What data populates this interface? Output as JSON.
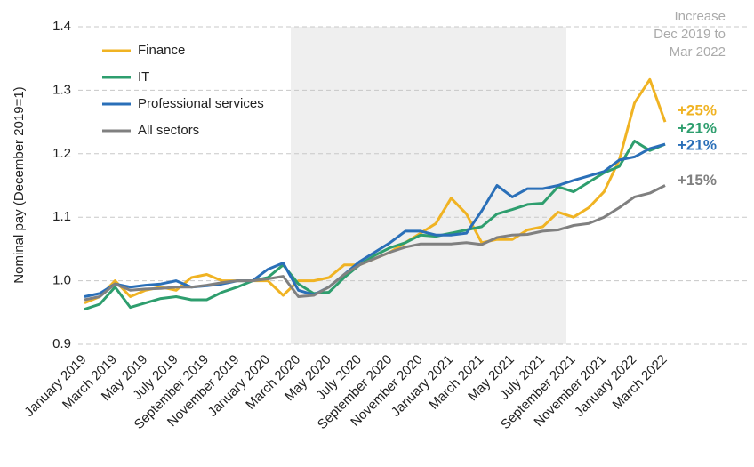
{
  "chart_data": {
    "type": "line",
    "ylabel": "Nominal pay (December 2019=1)",
    "annotation": [
      "Increase",
      "Dec 2019 to",
      "Mar 2022"
    ],
    "categories": [
      "January 2019",
      null,
      "March 2019",
      null,
      "May 2019",
      null,
      "July 2019",
      null,
      "September 2019",
      null,
      "November 2019",
      null,
      "January 2020",
      null,
      "March 2020",
      null,
      "May 2020",
      null,
      "July 2020",
      null,
      "September 2020",
      null,
      "November 2020",
      null,
      "January 2021",
      null,
      "March 2021",
      null,
      "May 2021",
      null,
      "July 2021",
      null,
      "September 2021",
      null,
      "November 2021",
      null,
      "January 2022",
      null,
      "March 2022"
    ],
    "series": [
      {
        "name": "Finance",
        "color": "#f0b323",
        "end_label": "+25%",
        "values": [
          0.965,
          0.975,
          1.0,
          0.975,
          0.985,
          0.99,
          0.985,
          1.005,
          1.01,
          1.0,
          1.0,
          1.0,
          1.0,
          0.977,
          1.0,
          1.0,
          1.005,
          1.025,
          1.025,
          1.035,
          1.045,
          1.06,
          1.075,
          1.09,
          1.13,
          1.105,
          1.06,
          1.065,
          1.065,
          1.08,
          1.085,
          1.108,
          1.1,
          1.115,
          1.14,
          1.19,
          1.28,
          1.317,
          1.25
        ]
      },
      {
        "name": "IT",
        "color": "#2e9e6e",
        "end_label": "+21%",
        "values": [
          0.955,
          0.963,
          0.99,
          0.958,
          0.965,
          0.972,
          0.975,
          0.97,
          0.97,
          0.982,
          0.99,
          1.0,
          1.005,
          1.025,
          0.995,
          0.98,
          0.982,
          1.005,
          1.025,
          1.04,
          1.052,
          1.06,
          1.072,
          1.07,
          1.075,
          1.08,
          1.085,
          1.105,
          1.112,
          1.12,
          1.122,
          1.148,
          1.14,
          1.155,
          1.17,
          1.18,
          1.22,
          1.205,
          1.215
        ]
      },
      {
        "name": "Professional services",
        "color": "#2a6fb8",
        "end_label": "+21%",
        "values": [
          0.975,
          0.98,
          0.995,
          0.99,
          0.993,
          0.995,
          1.0,
          0.99,
          0.992,
          0.995,
          1.0,
          1.0,
          1.018,
          1.028,
          0.985,
          0.978,
          0.99,
          1.01,
          1.03,
          1.045,
          1.06,
          1.078,
          1.078,
          1.072,
          1.072,
          1.075,
          1.11,
          1.15,
          1.132,
          1.145,
          1.145,
          1.15,
          1.158,
          1.165,
          1.172,
          1.19,
          1.195,
          1.208,
          1.215
        ]
      },
      {
        "name": "All sectors",
        "color": "#808080",
        "end_label": "+15%",
        "values": [
          0.97,
          0.975,
          0.995,
          0.985,
          0.987,
          0.988,
          0.99,
          0.99,
          0.993,
          0.997,
          1.0,
          1.0,
          1.003,
          1.007,
          0.975,
          0.977,
          0.99,
          1.01,
          1.025,
          1.035,
          1.045,
          1.053,
          1.058,
          1.058,
          1.058,
          1.06,
          1.057,
          1.068,
          1.072,
          1.073,
          1.078,
          1.08,
          1.087,
          1.09,
          1.1,
          1.115,
          1.132,
          1.138,
          1.15
        ]
      }
    ],
    "ylim": [
      0.9,
      1.4
    ],
    "yticks": [
      0.9,
      {
        "value": 1,
        "label": "1.0"
      },
      1.1,
      1.2,
      1.3,
      1.4
    ],
    "grid": true,
    "legend": "upper left"
  }
}
